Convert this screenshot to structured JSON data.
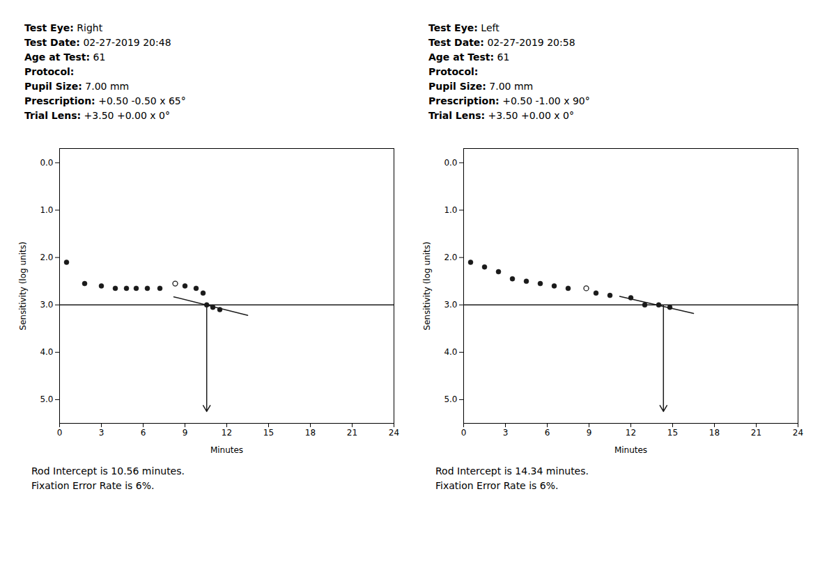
{
  "chart_data": [
    {
      "type": "scatter",
      "color": "#1a1a1a",
      "header": [
        "Test Eye: Right",
        "Test Date: 02-27-2019 20:48",
        "Age at Test: 61",
        "Protocol:",
        "Pupil Size: 7.00 mm",
        "Prescription: +0.50 -0.50 x 65°",
        "Trial Lens: +3.50 +0.00 x 0°"
      ],
      "annotations": [
        "Rod Intercept is 10.56 minutes.",
        "Fixation Error Rate is 6%."
      ],
      "xlabel": "Minutes",
      "ylabel": "Sensitivity (log units)",
      "xlim": [
        0,
        24
      ],
      "ylim": [
        5.5,
        -0.3
      ],
      "xticks": [
        0,
        3,
        6,
        9,
        12,
        15,
        18,
        21,
        24
      ],
      "yticks": [
        0,
        1,
        2,
        3,
        4,
        5
      ],
      "grid": false,
      "series": [
        {
          "type": "scatter",
          "marker": "filled",
          "x": [
            0.5,
            1.8,
            3.0,
            4.0,
            4.8,
            5.5,
            6.3,
            7.2,
            9.0,
            9.8,
            10.3,
            10.56,
            11.0,
            11.5
          ],
          "values": [
            2.1,
            2.55,
            2.6,
            2.65,
            2.65,
            2.65,
            2.65,
            2.65,
            2.6,
            2.65,
            2.75,
            3.0,
            3.05,
            3.1
          ]
        },
        {
          "type": "scatter",
          "marker": "open",
          "x": [
            8.3
          ],
          "values": [
            2.55
          ]
        },
        {
          "type": "line",
          "x": [
            8.2,
            13.5
          ],
          "values": [
            2.83,
            3.22
          ]
        }
      ],
      "hlines": [
        3.0
      ],
      "arrows": [
        {
          "x": 10.56,
          "y_start": 3.02,
          "y_end": 5.25
        }
      ]
    },
    {
      "type": "scatter",
      "color": "#1a1a1a",
      "header": [
        "Test Eye: Left",
        "Test Date: 02-27-2019 20:58",
        "Age at Test: 61",
        "Protocol:",
        "Pupil Size: 7.00 mm",
        "Prescription: +0.50 -1.00 x 90°",
        "Trial Lens: +3.50 +0.00 x 0°"
      ],
      "annotations": [
        "Rod Intercept is 14.34 minutes.",
        "Fixation Error Rate is 6%."
      ],
      "xlabel": "Minutes",
      "ylabel": "Sensitivity (log units)",
      "xlim": [
        0,
        24
      ],
      "ylim": [
        5.5,
        -0.3
      ],
      "xticks": [
        0,
        3,
        6,
        9,
        12,
        15,
        18,
        21,
        24
      ],
      "yticks": [
        0,
        1,
        2,
        3,
        4,
        5
      ],
      "grid": false,
      "series": [
        {
          "type": "scatter",
          "marker": "filled",
          "x": [
            0.5,
            1.5,
            2.5,
            3.5,
            4.5,
            5.5,
            6.5,
            7.5,
            9.5,
            10.5,
            12.0,
            13.0,
            14.0,
            14.8
          ],
          "values": [
            2.1,
            2.2,
            2.3,
            2.45,
            2.5,
            2.55,
            2.6,
            2.65,
            2.75,
            2.8,
            2.85,
            3.0,
            3.0,
            3.05
          ]
        },
        {
          "type": "scatter",
          "marker": "open",
          "x": [
            8.8
          ],
          "values": [
            2.65
          ]
        },
        {
          "type": "line",
          "x": [
            11.2,
            16.5
          ],
          "values": [
            2.82,
            3.18
          ]
        }
      ],
      "hlines": [
        3.0
      ],
      "arrows": [
        {
          "x": 14.34,
          "y_start": 3.02,
          "y_end": 5.25
        }
      ]
    }
  ]
}
